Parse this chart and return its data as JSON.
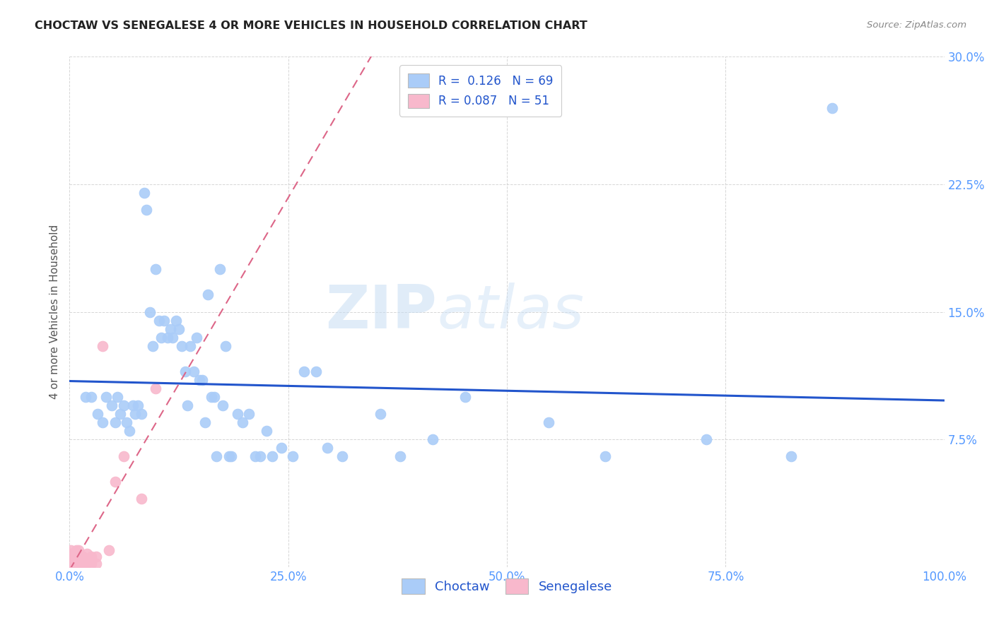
{
  "title": "CHOCTAW VS SENEGALESE 4 OR MORE VEHICLES IN HOUSEHOLD CORRELATION CHART",
  "source": "Source: ZipAtlas.com",
  "tick_color": "#5599ff",
  "ylabel": "4 or more Vehicles in Household",
  "xmin": 0.0,
  "xmax": 1.0,
  "ymin": 0.0,
  "ymax": 0.3,
  "yticks": [
    0.0,
    0.075,
    0.15,
    0.225,
    0.3
  ],
  "ytick_labels": [
    "",
    "7.5%",
    "15.0%",
    "22.5%",
    "30.0%"
  ],
  "xticks": [
    0.0,
    0.25,
    0.5,
    0.75,
    1.0
  ],
  "xtick_labels": [
    "0.0%",
    "25.0%",
    "50.0%",
    "75.0%",
    "100.0%"
  ],
  "choctaw_color": "#aaccf8",
  "senegalese_color": "#f8b8cc",
  "choctaw_line_color": "#2255cc",
  "senegalese_line_color": "#dd6688",
  "choctaw_R": 0.126,
  "choctaw_N": 69,
  "senegalese_R": 0.087,
  "senegalese_N": 51,
  "legend_color": "#2255cc",
  "watermark_text": "ZIPatlas",
  "watermark_color": "#cce4f6",
  "choctaw_x": [
    0.018,
    0.025,
    0.032,
    0.038,
    0.042,
    0.048,
    0.052,
    0.055,
    0.058,
    0.062,
    0.065,
    0.068,
    0.072,
    0.075,
    0.078,
    0.082,
    0.085,
    0.088,
    0.092,
    0.095,
    0.098,
    0.102,
    0.105,
    0.108,
    0.112,
    0.115,
    0.118,
    0.122,
    0.125,
    0.128,
    0.132,
    0.135,
    0.138,
    0.142,
    0.145,
    0.148,
    0.152,
    0.155,
    0.158,
    0.162,
    0.165,
    0.168,
    0.172,
    0.175,
    0.178,
    0.182,
    0.185,
    0.192,
    0.198,
    0.205,
    0.212,
    0.218,
    0.225,
    0.232,
    0.242,
    0.255,
    0.268,
    0.282,
    0.295,
    0.312,
    0.355,
    0.378,
    0.415,
    0.452,
    0.548,
    0.612,
    0.728,
    0.825,
    0.872
  ],
  "choctaw_y": [
    0.1,
    0.1,
    0.09,
    0.085,
    0.1,
    0.095,
    0.085,
    0.1,
    0.09,
    0.095,
    0.085,
    0.08,
    0.095,
    0.09,
    0.095,
    0.09,
    0.22,
    0.21,
    0.15,
    0.13,
    0.175,
    0.145,
    0.135,
    0.145,
    0.135,
    0.14,
    0.135,
    0.145,
    0.14,
    0.13,
    0.115,
    0.095,
    0.13,
    0.115,
    0.135,
    0.11,
    0.11,
    0.085,
    0.16,
    0.1,
    0.1,
    0.065,
    0.175,
    0.095,
    0.13,
    0.065,
    0.065,
    0.09,
    0.085,
    0.09,
    0.065,
    0.065,
    0.08,
    0.065,
    0.07,
    0.065,
    0.115,
    0.115,
    0.07,
    0.065,
    0.09,
    0.065,
    0.075,
    0.1,
    0.085,
    0.065,
    0.075,
    0.065,
    0.27
  ],
  "senegalese_x": [
    0.001,
    0.001,
    0.001,
    0.001,
    0.001,
    0.001,
    0.001,
    0.001,
    0.001,
    0.001,
    0.002,
    0.002,
    0.002,
    0.003,
    0.003,
    0.003,
    0.003,
    0.003,
    0.003,
    0.005,
    0.005,
    0.005,
    0.005,
    0.005,
    0.005,
    0.008,
    0.008,
    0.008,
    0.008,
    0.008,
    0.01,
    0.01,
    0.01,
    0.012,
    0.012,
    0.015,
    0.015,
    0.015,
    0.02,
    0.02,
    0.02,
    0.025,
    0.025,
    0.03,
    0.03,
    0.038,
    0.045,
    0.052,
    0.062,
    0.082,
    0.098
  ],
  "senegalese_y": [
    0.0,
    0.0,
    0.0,
    0.002,
    0.002,
    0.004,
    0.006,
    0.006,
    0.008,
    0.01,
    0.0,
    0.002,
    0.004,
    0.0,
    0.0,
    0.002,
    0.004,
    0.006,
    0.008,
    0.0,
    0.0,
    0.002,
    0.004,
    0.006,
    0.008,
    0.0,
    0.002,
    0.004,
    0.006,
    0.01,
    0.002,
    0.006,
    0.01,
    0.0,
    0.004,
    0.0,
    0.002,
    0.006,
    0.002,
    0.004,
    0.008,
    0.002,
    0.006,
    0.002,
    0.006,
    0.13,
    0.01,
    0.05,
    0.065,
    0.04,
    0.105
  ]
}
